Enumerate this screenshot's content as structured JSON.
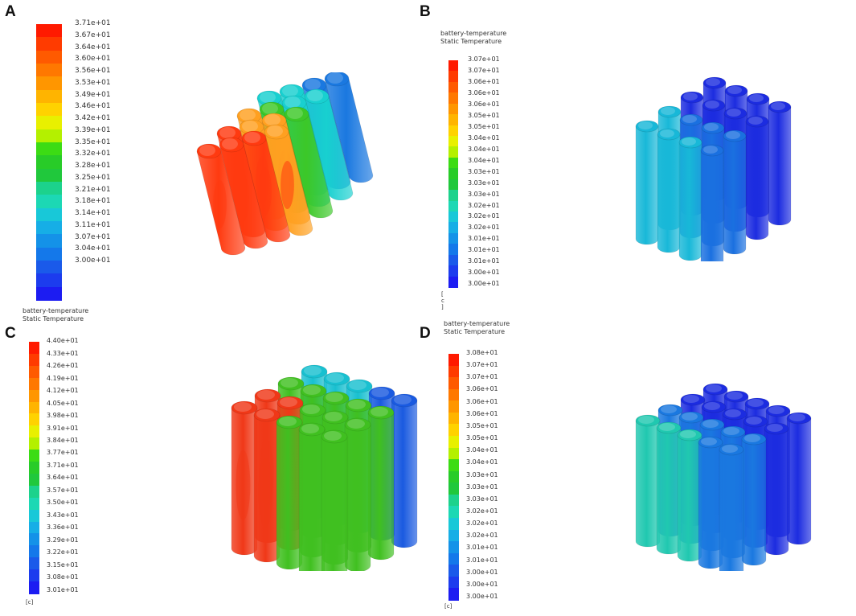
{
  "panels": [
    {
      "letter": "A",
      "header": [
        "",
        ""
      ],
      "unit": "",
      "ticks": [
        "3.71e+01",
        "3.67e+01",
        "3.64e+01",
        "3.60e+01",
        "3.56e+01",
        "3.53e+01",
        "3.49e+01",
        "3.46e+01",
        "3.42e+01",
        "3.39e+01",
        "3.35e+01",
        "3.32e+01",
        "3.28e+01",
        "3.25e+01",
        "3.21e+01",
        "3.18e+01",
        "3.14e+01",
        "3.11e+01",
        "3.07e+01",
        "3.04e+01",
        "3.00e+01"
      ],
      "colors": [
        "#ff1a00",
        "#ff3b00",
        "#ff5a00",
        "#ff7800",
        "#ff9600",
        "#ffb400",
        "#ffd200",
        "#e8f000",
        "#b4f000",
        "#3cdc14",
        "#28cc28",
        "#20c83c",
        "#1cd28c",
        "#1cd8b4",
        "#18c8d8",
        "#16aee6",
        "#1492e8",
        "#1478ea",
        "#1a5aea",
        "#1c3cee",
        "#1c1cf2"
      ],
      "pack": {
        "hot": "#ff3a10",
        "warm": "#ffa020",
        "mid": "#3cc828",
        "cool": "#18d0d0",
        "cold": "#1a78e0"
      }
    },
    {
      "letter": "B",
      "header": [
        "battery-temperature",
        "Static Temperature"
      ],
      "unit": "[ c ]",
      "ticks": [
        "3.07e+01",
        "3.07e+01",
        "3.06e+01",
        "3.06e+01",
        "3.06e+01",
        "3.05e+01",
        "3.05e+01",
        "3.04e+01",
        "3.04e+01",
        "3.04e+01",
        "3.03e+01",
        "3.03e+01",
        "3.03e+01",
        "3.02e+01",
        "3.02e+01",
        "3.02e+01",
        "3.01e+01",
        "3.01e+01",
        "3.01e+01",
        "3.00e+01",
        "3.00e+01"
      ],
      "colors": [
        "#ff1a00",
        "#ff3b00",
        "#ff5a00",
        "#ff7800",
        "#ff9600",
        "#ffb400",
        "#ffd200",
        "#e8f000",
        "#b4f000",
        "#3cdc14",
        "#28cc28",
        "#20c83c",
        "#1cd28c",
        "#1cd8b4",
        "#18c8d8",
        "#16aee6",
        "#1492e8",
        "#1478ea",
        "#1a5aea",
        "#1c3cee",
        "#1c1cf2"
      ],
      "pack": {
        "hot": "#f0a020",
        "warm": "#30c848",
        "mid": "#18b8d8",
        "cool": "#1a70e0",
        "cold": "#1c2ce0"
      }
    },
    {
      "letter": "C",
      "header": [
        "battery-temperature",
        "Static Temperature"
      ],
      "unit": "[c]",
      "ticks": [
        "4.40e+01",
        "4.33e+01",
        "4.26e+01",
        "4.19e+01",
        "4.12e+01",
        "4.05e+01",
        "3.98e+01",
        "3.91e+01",
        "3.84e+01",
        "3.77e+01",
        "3.71e+01",
        "3.64e+01",
        "3.57e+01",
        "3.50e+01",
        "3.43e+01",
        "3.36e+01",
        "3.29e+01",
        "3.22e+01",
        "3.15e+01",
        "3.08e+01",
        "3.01e+01"
      ],
      "colors": [
        "#ff1a00",
        "#ff3b00",
        "#ff5a00",
        "#ff7800",
        "#ff9600",
        "#ffb400",
        "#ffd200",
        "#e8f000",
        "#b4f000",
        "#3cdc14",
        "#28cc28",
        "#20c83c",
        "#1cd28c",
        "#1cd8b4",
        "#18c8d8",
        "#16aee6",
        "#1492e8",
        "#1478ea",
        "#1a5aea",
        "#1c3cee",
        "#1c1cf2"
      ],
      "pack": {
        "hot": "#f03818",
        "warm": "#f0a020",
        "mid": "#40c020",
        "cool": "#18c0d0",
        "cold": "#1a5ae0"
      }
    },
    {
      "letter": "D",
      "header": [
        "battery-temperature",
        "Static Temperature"
      ],
      "unit": "[c]",
      "ticks": [
        "3.08e+01",
        "3.07e+01",
        "3.07e+01",
        "3.06e+01",
        "3.06e+01",
        "3.06e+01",
        "3.05e+01",
        "3.05e+01",
        "3.04e+01",
        "3.04e+01",
        "3.03e+01",
        "3.03e+01",
        "3.03e+01",
        "3.02e+01",
        "3.02e+01",
        "3.02e+01",
        "3.01e+01",
        "3.01e+01",
        "3.00e+01",
        "3.00e+01",
        "3.00e+01"
      ],
      "colors": [
        "#ff1a00",
        "#ff3b00",
        "#ff5a00",
        "#ff7800",
        "#ff9600",
        "#ffb400",
        "#ffd200",
        "#e8f000",
        "#b4f000",
        "#3cdc14",
        "#28cc28",
        "#20c83c",
        "#1cd28c",
        "#1cd8b4",
        "#18c8d8",
        "#16aee6",
        "#1492e8",
        "#1478ea",
        "#1a5aea",
        "#1c3cee",
        "#1c1cf2"
      ],
      "pack": {
        "hot": "#e83818",
        "warm": "#f0c020",
        "mid": "#20c8b0",
        "cool": "#1a78e0",
        "cold": "#1c2ce0"
      }
    }
  ]
}
